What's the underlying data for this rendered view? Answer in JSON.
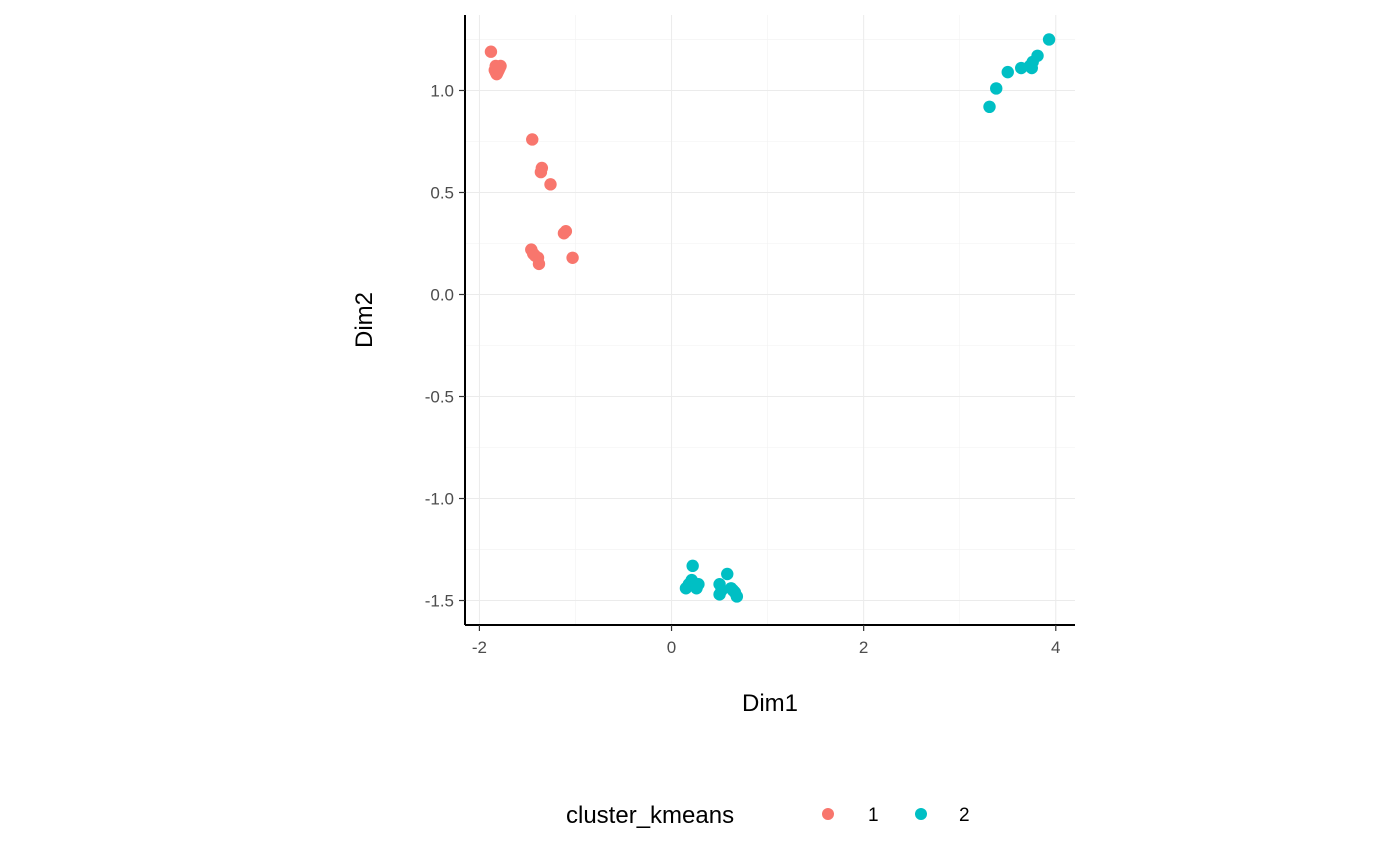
{
  "chart_data": {
    "type": "scatter",
    "title": "",
    "xlabel": "Dim1",
    "ylabel": "Dim2",
    "xlim": [
      -2.15,
      4.2
    ],
    "ylim": [
      -1.62,
      1.37
    ],
    "x_ticks": [
      -2,
      0,
      2,
      4
    ],
    "x_tick_labels": [
      "-2",
      "0",
      "2",
      "4"
    ],
    "y_ticks": [
      -1.5,
      -1.0,
      -0.5,
      0.0,
      0.5,
      1.0
    ],
    "y_tick_labels": [
      "-1.5",
      "-1.0",
      "-0.5",
      "0.0",
      "0.5",
      "1.0"
    ],
    "grid": true,
    "legend": {
      "title": "cluster_kmeans",
      "placement": "bottom"
    },
    "series": [
      {
        "name": "1",
        "color": "#F8766D",
        "points": [
          [
            -1.88,
            1.19
          ],
          [
            -1.83,
            1.12
          ],
          [
            -1.81,
            1.09
          ],
          [
            -1.79,
            1.11
          ],
          [
            -1.82,
            1.08
          ],
          [
            -1.8,
            1.1
          ],
          [
            -1.84,
            1.1
          ],
          [
            -1.78,
            1.12
          ],
          [
            -1.83,
            1.09
          ],
          [
            -1.81,
            1.11
          ],
          [
            -1.45,
            0.76
          ],
          [
            -1.35,
            0.62
          ],
          [
            -1.36,
            0.6
          ],
          [
            -1.26,
            0.54
          ],
          [
            -1.1,
            0.31
          ],
          [
            -1.12,
            0.3
          ],
          [
            -1.46,
            0.22
          ],
          [
            -1.44,
            0.2
          ],
          [
            -1.42,
            0.19
          ],
          [
            -1.39,
            0.18
          ],
          [
            -1.38,
            0.15
          ],
          [
            -1.03,
            0.18
          ]
        ]
      },
      {
        "name": "2",
        "color": "#00BFC4",
        "points": [
          [
            3.93,
            1.25
          ],
          [
            3.81,
            1.17
          ],
          [
            3.76,
            1.14
          ],
          [
            3.75,
            1.11
          ],
          [
            3.73,
            1.12
          ],
          [
            3.64,
            1.11
          ],
          [
            3.5,
            1.09
          ],
          [
            3.38,
            1.01
          ],
          [
            3.31,
            0.92
          ],
          [
            0.22,
            -1.33
          ],
          [
            0.21,
            -1.4
          ],
          [
            0.18,
            -1.42
          ],
          [
            0.24,
            -1.43
          ],
          [
            0.28,
            -1.42
          ],
          [
            0.15,
            -1.44
          ],
          [
            0.26,
            -1.44
          ],
          [
            0.5,
            -1.42
          ],
          [
            0.52,
            -1.45
          ],
          [
            0.5,
            -1.47
          ],
          [
            0.58,
            -1.37
          ],
          [
            0.62,
            -1.44
          ],
          [
            0.66,
            -1.46
          ],
          [
            0.68,
            -1.48
          ],
          [
            0.64,
            -1.45
          ]
        ]
      }
    ]
  }
}
